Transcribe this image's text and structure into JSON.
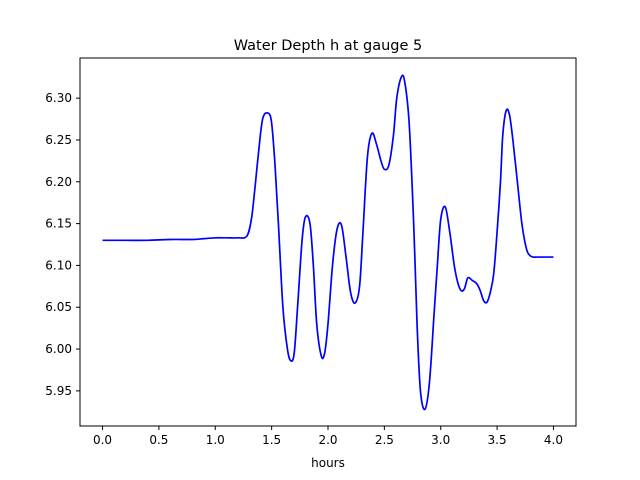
{
  "chart_data": {
    "type": "line",
    "title": "Water Depth h at gauge 5",
    "xlabel": "hours",
    "ylabel": "",
    "xlim": [
      -0.2,
      4.2
    ],
    "ylim": [
      5.908,
      6.348
    ],
    "xticks": [
      0.0,
      0.5,
      1.0,
      1.5,
      2.0,
      2.5,
      3.0,
      3.5,
      4.0
    ],
    "xtick_labels": [
      "0.0",
      "0.5",
      "1.0",
      "1.5",
      "2.0",
      "2.5",
      "3.0",
      "3.5",
      "4.0"
    ],
    "yticks": [
      5.95,
      6.0,
      6.05,
      6.1,
      6.15,
      6.2,
      6.25,
      6.3
    ],
    "ytick_labels": [
      "5.95",
      "6.00",
      "6.05",
      "6.10",
      "6.15",
      "6.20",
      "6.25",
      "6.30"
    ],
    "grid": false,
    "legend": "none",
    "series": [
      {
        "color": "#0000ff",
        "x": [
          0.0,
          0.2,
          0.4,
          0.6,
          0.8,
          0.9,
          1.0,
          1.1,
          1.2,
          1.28,
          1.32,
          1.35,
          1.38,
          1.42,
          1.47,
          1.5,
          1.53,
          1.56,
          1.6,
          1.64,
          1.67,
          1.7,
          1.73,
          1.77,
          1.8,
          1.84,
          1.87,
          1.9,
          1.94,
          1.97,
          2.0,
          2.04,
          2.08,
          2.12,
          2.16,
          2.2,
          2.24,
          2.28,
          2.31,
          2.35,
          2.39,
          2.43,
          2.47,
          2.5,
          2.54,
          2.58,
          2.61,
          2.65,
          2.68,
          2.72,
          2.76,
          2.79,
          2.82,
          2.86,
          2.9,
          2.94,
          2.97,
          3.0,
          3.04,
          3.08,
          3.12,
          3.15,
          3.18,
          3.21,
          3.24,
          3.28,
          3.32,
          3.35,
          3.38,
          3.41,
          3.44,
          3.47,
          3.5,
          3.53,
          3.55,
          3.58,
          3.61,
          3.64,
          3.68,
          3.72,
          3.76,
          3.79,
          3.82,
          3.85,
          3.88,
          3.92,
          3.95,
          3.98,
          4.0
        ],
        "y": [
          6.13,
          6.13,
          6.13,
          6.131,
          6.131,
          6.132,
          6.133,
          6.133,
          6.133,
          6.135,
          6.155,
          6.19,
          6.23,
          6.275,
          6.282,
          6.27,
          6.22,
          6.15,
          6.05,
          6.0,
          5.986,
          5.995,
          6.05,
          6.13,
          6.158,
          6.15,
          6.1,
          6.03,
          5.992,
          5.995,
          6.03,
          6.1,
          6.143,
          6.148,
          6.11,
          6.068,
          6.055,
          6.075,
          6.14,
          6.23,
          6.258,
          6.245,
          6.225,
          6.215,
          6.22,
          6.255,
          6.3,
          6.325,
          6.32,
          6.27,
          6.15,
          6.03,
          5.95,
          5.928,
          5.96,
          6.04,
          6.1,
          6.155,
          6.17,
          6.14,
          6.1,
          6.08,
          6.07,
          6.072,
          6.085,
          6.082,
          6.078,
          6.07,
          6.058,
          6.056,
          6.068,
          6.09,
          6.14,
          6.2,
          6.255,
          6.285,
          6.28,
          6.25,
          6.2,
          6.15,
          6.12,
          6.112,
          6.11,
          6.11,
          6.11,
          6.11,
          6.11,
          6.11,
          6.11
        ]
      }
    ]
  }
}
